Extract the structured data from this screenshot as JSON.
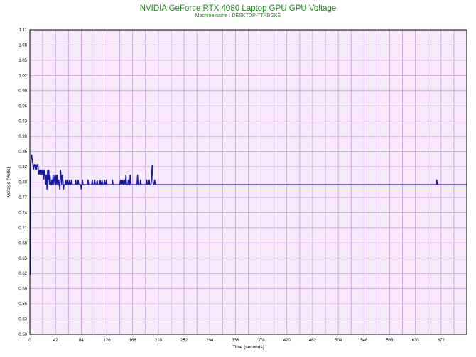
{
  "chart_data": {
    "type": "line",
    "title": "NVIDIA GeForce RTX 4080 Laptop GPU GPU Voltage",
    "subtitle": "Machine name : DESKTOP-TTRBGKS",
    "xlabel": "Time (seconds)",
    "ylabel": "Voltage (Volts)",
    "xlim": [
      0,
      714
    ],
    "ylim": [
      0.5,
      1.11
    ],
    "x_ticks": [
      0,
      42,
      84,
      126,
      168,
      210,
      252,
      294,
      336,
      378,
      420,
      462,
      504,
      546,
      588,
      630,
      672
    ],
    "y_ticks": [
      "0.50",
      "0.53",
      "0.56",
      "0.59",
      "0.62",
      "0.65",
      "0.68",
      "0.71",
      "0.74",
      "0.77",
      "0.80",
      "0.83",
      "0.86",
      "0.90",
      "0.93",
      "0.96",
      "0.99",
      "1.02",
      "1.05",
      "1.08",
      "1.11"
    ],
    "grid": true,
    "colors": {
      "line": "#1a1aa0",
      "plot_background": "#f6e9fb",
      "grid": "#c79bd6",
      "title": "#1f8a1f"
    },
    "series": [
      {
        "values": [
          [
            0,
            0.62
          ],
          [
            0.5,
            0.62
          ],
          [
            1,
            0.7
          ],
          [
            1.5,
            0.84
          ],
          [
            2,
            0.85
          ],
          [
            3,
            0.86
          ],
          [
            4,
            0.85
          ],
          [
            5,
            0.84
          ],
          [
            6,
            0.83
          ],
          [
            7,
            0.84
          ],
          [
            8,
            0.84
          ],
          [
            9,
            0.83
          ],
          [
            10,
            0.84
          ],
          [
            11,
            0.83
          ],
          [
            12,
            0.84
          ],
          [
            13,
            0.84
          ],
          [
            14,
            0.83
          ],
          [
            15,
            0.82
          ],
          [
            16,
            0.83
          ],
          [
            17,
            0.82
          ],
          [
            18,
            0.83
          ],
          [
            19,
            0.82
          ],
          [
            20,
            0.83
          ],
          [
            21,
            0.82
          ],
          [
            22,
            0.83
          ],
          [
            23,
            0.81
          ],
          [
            24,
            0.83
          ],
          [
            25,
            0.82
          ],
          [
            26,
            0.8
          ],
          [
            27,
            0.82
          ],
          [
            28,
            0.79
          ],
          [
            29,
            0.83
          ],
          [
            30,
            0.81
          ],
          [
            31,
            0.83
          ],
          [
            32,
            0.8
          ],
          [
            33,
            0.82
          ],
          [
            34,
            0.8
          ],
          [
            35,
            0.8
          ],
          [
            36,
            0.81
          ],
          [
            37,
            0.8
          ],
          [
            38,
            0.82
          ],
          [
            39,
            0.8
          ],
          [
            40,
            0.81
          ],
          [
            41,
            0.82
          ],
          [
            42,
            0.8
          ],
          [
            43,
            0.82
          ],
          [
            44,
            0.8
          ],
          [
            45,
            0.82
          ],
          [
            46,
            0.8
          ],
          [
            47,
            0.81
          ],
          [
            48,
            0.8
          ],
          [
            49,
            0.79
          ],
          [
            50,
            0.83
          ],
          [
            51,
            0.82
          ],
          [
            52,
            0.8
          ],
          [
            53,
            0.82
          ],
          [
            54,
            0.81
          ],
          [
            55,
            0.79
          ],
          [
            56,
            0.8
          ],
          [
            57,
            0.8
          ],
          [
            58,
            0.8
          ],
          [
            59,
            0.81
          ],
          [
            60,
            0.8
          ],
          [
            61,
            0.8
          ],
          [
            62,
            0.81
          ],
          [
            63,
            0.8
          ],
          [
            64,
            0.8
          ],
          [
            65,
            0.81
          ],
          [
            66,
            0.8
          ],
          [
            67,
            0.8
          ],
          [
            68,
            0.81
          ],
          [
            69,
            0.8
          ],
          [
            70,
            0.8
          ],
          [
            71,
            0.8
          ],
          [
            72,
            0.8
          ],
          [
            73,
            0.8
          ],
          [
            74,
            0.8
          ],
          [
            75,
            0.81
          ],
          [
            76,
            0.8
          ],
          [
            77,
            0.8
          ],
          [
            78,
            0.8
          ],
          [
            79,
            0.81
          ],
          [
            80,
            0.8
          ],
          [
            81,
            0.8
          ],
          [
            82,
            0.8
          ],
          [
            83,
            0.8
          ],
          [
            84,
            0.79
          ],
          [
            85,
            0.8
          ],
          [
            86,
            0.81
          ],
          [
            87,
            0.8
          ],
          [
            88,
            0.8
          ],
          [
            89,
            0.8
          ],
          [
            90,
            0.8
          ],
          [
            91,
            0.8
          ],
          [
            92,
            0.8
          ],
          [
            93,
            0.8
          ],
          [
            94,
            0.8
          ],
          [
            95,
            0.81
          ],
          [
            96,
            0.8
          ],
          [
            97,
            0.8
          ],
          [
            98,
            0.8
          ],
          [
            99,
            0.8
          ],
          [
            100,
            0.8
          ],
          [
            101,
            0.8
          ],
          [
            102,
            0.81
          ],
          [
            103,
            0.8
          ],
          [
            104,
            0.8
          ],
          [
            105,
            0.8
          ],
          [
            106,
            0.81
          ],
          [
            107,
            0.8
          ],
          [
            108,
            0.8
          ],
          [
            109,
            0.8
          ],
          [
            110,
            0.81
          ],
          [
            111,
            0.8
          ],
          [
            112,
            0.8
          ],
          [
            113,
            0.8
          ],
          [
            114,
            0.8
          ],
          [
            115,
            0.81
          ],
          [
            116,
            0.8
          ],
          [
            117,
            0.8
          ],
          [
            118,
            0.81
          ],
          [
            119,
            0.8
          ],
          [
            120,
            0.8
          ],
          [
            121,
            0.8
          ],
          [
            122,
            0.81
          ],
          [
            123,
            0.8
          ],
          [
            124,
            0.8
          ],
          [
            125,
            0.81
          ],
          [
            126,
            0.8
          ],
          [
            127,
            0.8
          ],
          [
            130,
            0.8
          ],
          [
            134,
            0.8
          ],
          [
            135,
            0.81
          ],
          [
            136,
            0.8
          ],
          [
            140,
            0.8
          ],
          [
            147,
            0.8
          ],
          [
            148,
            0.81
          ],
          [
            149,
            0.8
          ],
          [
            150,
            0.81
          ],
          [
            151,
            0.8
          ],
          [
            152,
            0.81
          ],
          [
            153,
            0.8
          ],
          [
            154,
            0.8
          ],
          [
            155,
            0.81
          ],
          [
            156,
            0.8
          ],
          [
            157,
            0.82
          ],
          [
            158,
            0.8
          ],
          [
            159,
            0.8
          ],
          [
            160,
            0.8
          ],
          [
            161,
            0.81
          ],
          [
            162,
            0.8
          ],
          [
            163,
            0.8
          ],
          [
            164,
            0.82
          ],
          [
            165,
            0.8
          ],
          [
            166,
            0.8
          ],
          [
            168,
            0.8
          ],
          [
            175,
            0.8
          ],
          [
            176,
            0.82
          ],
          [
            177,
            0.8
          ],
          [
            178,
            0.8
          ],
          [
            180,
            0.8
          ],
          [
            181,
            0.81
          ],
          [
            182,
            0.8
          ],
          [
            186,
            0.8
          ],
          [
            187,
            0.8
          ],
          [
            188,
            0.8
          ],
          [
            190,
            0.8
          ],
          [
            191,
            0.81
          ],
          [
            192,
            0.8
          ],
          [
            194,
            0.8
          ],
          [
            195,
            0.81
          ],
          [
            196,
            0.8
          ],
          [
            198,
            0.8
          ],
          [
            199,
            0.81
          ],
          [
            199.5,
            0.83
          ],
          [
            200,
            0.84
          ],
          [
            201,
            0.82
          ],
          [
            201.5,
            0.8
          ],
          [
            203,
            0.8
          ],
          [
            204,
            0.81
          ],
          [
            205,
            0.8
          ],
          [
            215,
            0.8
          ],
          [
            216,
            0.8
          ],
          [
            220,
            0.8
          ],
          [
            221,
            0.8
          ],
          [
            226,
            0.8
          ],
          [
            227,
            0.8
          ],
          [
            250,
            0.8
          ],
          [
            320,
            0.8
          ],
          [
            400,
            0.8
          ],
          [
            474,
            0.8
          ],
          [
            475,
            0.8
          ],
          [
            476,
            0.8
          ],
          [
            480,
            0.8
          ],
          [
            520,
            0.8
          ],
          [
            521,
            0.8
          ],
          [
            522,
            0.8
          ],
          [
            560,
            0.8
          ],
          [
            620,
            0.8
          ],
          [
            664,
            0.8
          ],
          [
            665,
            0.81
          ],
          [
            666,
            0.8
          ],
          [
            700,
            0.8
          ],
          [
            714,
            0.8
          ]
        ]
      }
    ]
  }
}
